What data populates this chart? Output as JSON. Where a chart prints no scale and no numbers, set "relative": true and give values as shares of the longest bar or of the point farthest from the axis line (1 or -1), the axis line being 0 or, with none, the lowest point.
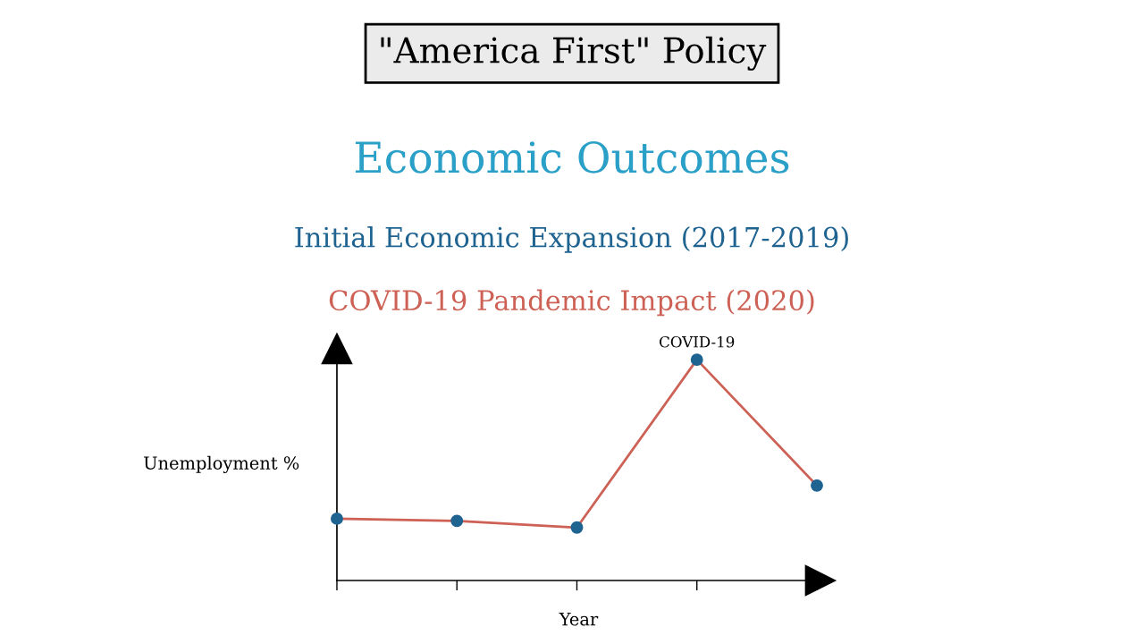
{
  "chart_data": {
    "type": "line",
    "title": "\"America First\" Policy",
    "subtitle": "Economic Outcomes",
    "xlabel": "Year",
    "ylabel": "Unemployment %",
    "relative": true,
    "categories": [
      null,
      null,
      null,
      null,
      null
    ],
    "series": [
      {
        "color": "#cd6155",
        "values": [
          0.28,
          0.27,
          0.24,
          1,
          0.43
        ]
      }
    ],
    "marker": "circle",
    "grid": false,
    "legend": false,
    "annotations": [
      "Initial Economic Expansion (2017-2019)",
      "COVID-19 Pandemic Impact (2020)",
      {
        "text": "COVID-19",
        "y": 1
      }
    ]
  }
}
